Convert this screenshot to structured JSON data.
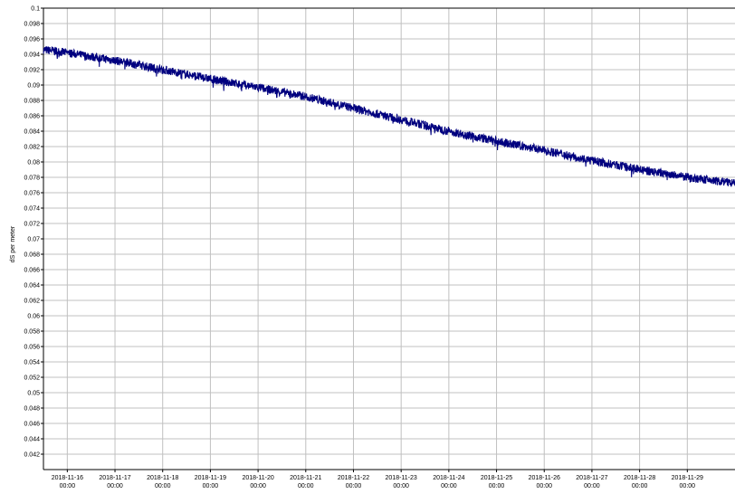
{
  "chart_data": {
    "type": "line",
    "title": "",
    "xlabel": "",
    "ylabel": "dS per meter",
    "xlim": [
      "2018-11-15 12:00",
      "2018-11-30 00:00"
    ],
    "ylim": [
      0.04,
      0.1
    ],
    "grid": true,
    "line_color": "#00007f",
    "y_ticks": [
      "0.042",
      "0.044",
      "0.046",
      "0.048",
      "0.05",
      "0.052",
      "0.054",
      "0.056",
      "0.058",
      "0.06",
      "0.062",
      "0.064",
      "0.066",
      "0.068",
      "0.07",
      "0.072",
      "0.074",
      "0.076",
      "0.078",
      "0.08",
      "0.082",
      "0.084",
      "0.086",
      "0.088",
      "0.09",
      "0.092",
      "0.094",
      "0.096",
      "0.098",
      "0.1"
    ],
    "x_ticks": [
      {
        "date": "2018-11-16",
        "time": "00:00"
      },
      {
        "date": "2018-11-17",
        "time": "00:00"
      },
      {
        "date": "2018-11-18",
        "time": "00:00"
      },
      {
        "date": "2018-11-19",
        "time": "00:00"
      },
      {
        "date": "2018-11-20",
        "time": "00:00"
      },
      {
        "date": "2018-11-21",
        "time": "00:00"
      },
      {
        "date": "2018-11-22",
        "time": "00:00"
      },
      {
        "date": "2018-11-23",
        "time": "00:00"
      },
      {
        "date": "2018-11-24",
        "time": "00:00"
      },
      {
        "date": "2018-11-25",
        "time": "00:00"
      },
      {
        "date": "2018-11-26",
        "time": "00:00"
      },
      {
        "date": "2018-11-27",
        "time": "00:00"
      },
      {
        "date": "2018-11-28",
        "time": "00:00"
      },
      {
        "date": "2018-11-29",
        "time": "00:00"
      }
    ],
    "series": [
      {
        "x": [
          "2018-11-15 12:00",
          "2018-11-16 00:00",
          "2018-11-17 00:00",
          "2018-11-18 00:00",
          "2018-11-19 00:00",
          "2018-11-20 00:00",
          "2018-11-21 00:00",
          "2018-11-22 00:00",
          "2018-11-23 00:00",
          "2018-11-24 00:00",
          "2018-11-25 00:00",
          "2018-11-26 00:00",
          "2018-11-27 00:00",
          "2018-11-28 00:00",
          "2018-11-29 00:00",
          "2018-11-30 00:00"
        ],
        "y": [
          0.0946,
          0.0942,
          0.0932,
          0.092,
          0.0908,
          0.0897,
          0.0885,
          0.087,
          0.0855,
          0.084,
          0.0827,
          0.0815,
          0.0802,
          0.079,
          0.078,
          0.0772
        ]
      }
    ]
  }
}
